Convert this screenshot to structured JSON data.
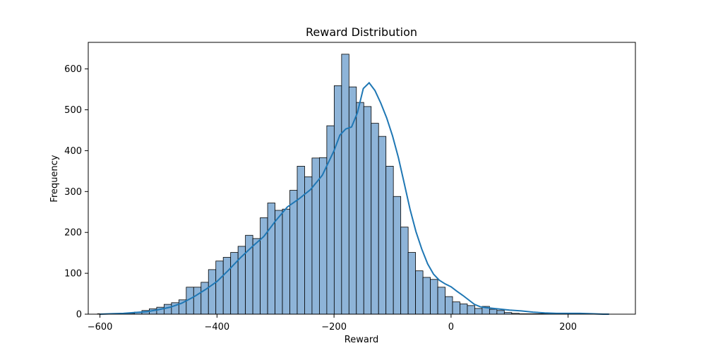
{
  "chart_data": {
    "type": "bar",
    "title": "Reward Distribution",
    "xlabel": "Reward",
    "ylabel": "Frequency",
    "xlim": [
      -620,
      315
    ],
    "ylim": [
      0,
      665
    ],
    "x_ticks": [
      -600,
      -400,
      -200,
      0,
      200
    ],
    "x_tick_labels": [
      "−600",
      "−400",
      "−200",
      "0",
      "200"
    ],
    "y_ticks": [
      0,
      100,
      200,
      300,
      400,
      500,
      600
    ],
    "y_tick_labels": [
      "0",
      "100",
      "200",
      "300",
      "400",
      "500",
      "600"
    ],
    "grid": false,
    "legend": "none",
    "bin_start": -604.2,
    "bin_width": 12.64,
    "counts": [
      1,
      0,
      0,
      0,
      2,
      5,
      9,
      13,
      17,
      24,
      28,
      35,
      66,
      66,
      78,
      109,
      130,
      139,
      151,
      166,
      193,
      185,
      236,
      272,
      254,
      257,
      303,
      362,
      336,
      382,
      383,
      461,
      559,
      636,
      556,
      518,
      508,
      467,
      435,
      362,
      288,
      213,
      151,
      106,
      90,
      85,
      66,
      43,
      30,
      25,
      21,
      14,
      19,
      12,
      9,
      4,
      2,
      1,
      1,
      1,
      1,
      0,
      0,
      0,
      0,
      0,
      0,
      0,
      0
    ],
    "kde_x": [
      -600,
      -580,
      -560,
      -540,
      -520,
      -500,
      -480,
      -460,
      -440,
      -420,
      -400,
      -380,
      -360,
      -340,
      -320,
      -300,
      -280,
      -260,
      -240,
      -220,
      -200,
      -190,
      -180,
      -170,
      -160,
      -150,
      -140,
      -130,
      -120,
      -110,
      -100,
      -90,
      -80,
      -70,
      -60,
      -50,
      -40,
      -30,
      -20,
      -10,
      0,
      10,
      20,
      30,
      40,
      50,
      60,
      80,
      100,
      120,
      140,
      160,
      180,
      200,
      220,
      240,
      260,
      270
    ],
    "kde_y": [
      0,
      1,
      2,
      4,
      6,
      11,
      17,
      27,
      42,
      60,
      80,
      108,
      138,
      165,
      190,
      228,
      262,
      282,
      305,
      340,
      400,
      438,
      453,
      458,
      493,
      552,
      566,
      547,
      516,
      480,
      436,
      383,
      320,
      256,
      202,
      159,
      123,
      98,
      83,
      74,
      67,
      56,
      46,
      35,
      24,
      18,
      16,
      13,
      10,
      8,
      5,
      3,
      2,
      2,
      2,
      1,
      0,
      0
    ],
    "bar_fill": "#8eb4d8",
    "bar_edge": "#000000",
    "kde_color": "#1f77b4"
  }
}
